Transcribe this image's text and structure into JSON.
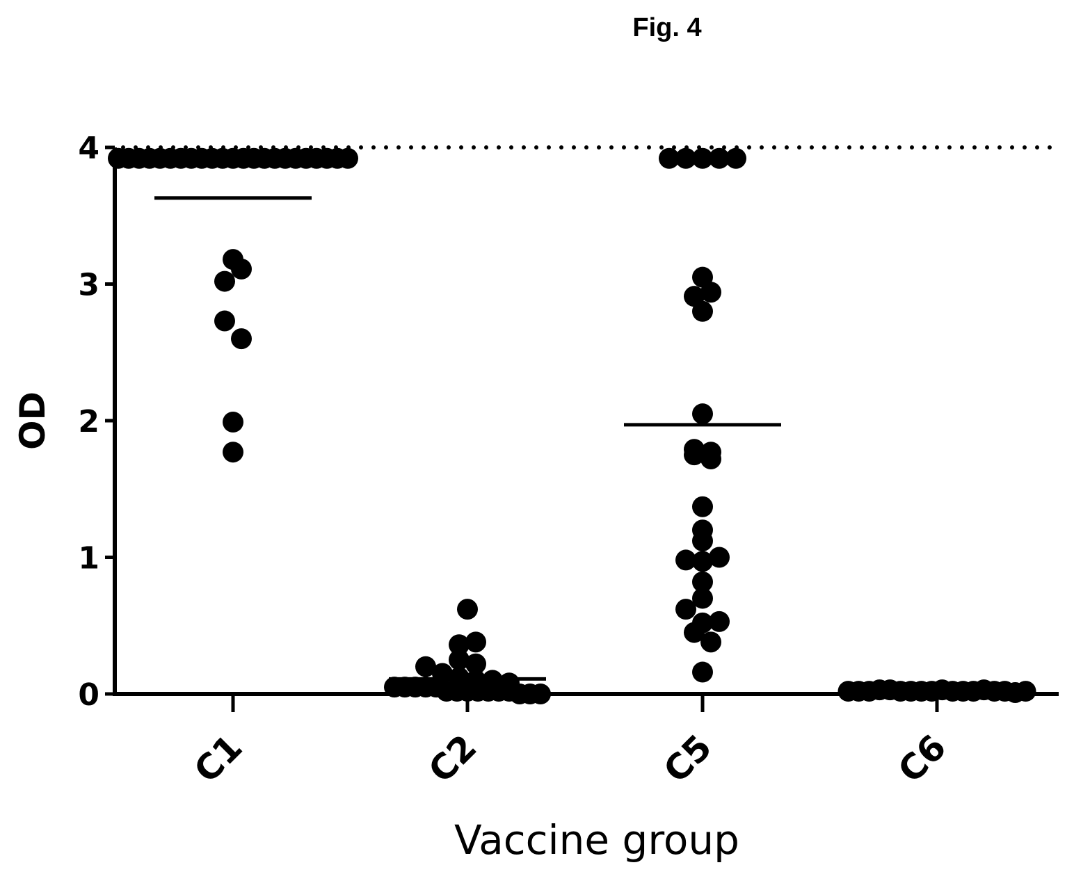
{
  "figure": {
    "title": "Fig. 4"
  },
  "chart_data": {
    "type": "scatter",
    "xlabel": "Vaccine group",
    "ylabel": "OD",
    "ylim": [
      0,
      4
    ],
    "yticks": [
      0,
      1,
      2,
      3,
      4
    ],
    "ytick_labels": [
      "0",
      "1",
      "2",
      "3",
      "4"
    ],
    "categories": [
      "C1",
      "C2",
      "C5",
      "C6"
    ],
    "reference_line": {
      "y": 4.0,
      "style": "dotted"
    },
    "grid": false,
    "legend": "none",
    "marker_color": "#000000",
    "groups": [
      {
        "name": "C1",
        "mean": 3.63,
        "values": [
          3.92,
          3.92,
          3.92,
          3.92,
          3.92,
          3.92,
          3.92,
          3.92,
          3.92,
          3.92,
          3.92,
          3.92,
          3.92,
          3.92,
          3.92,
          3.92,
          3.92,
          3.92,
          3.92,
          3.92,
          3.92,
          3.92,
          3.92,
          3.18,
          3.02,
          3.11,
          2.73,
          2.6,
          1.99,
          1.77
        ]
      },
      {
        "name": "C2",
        "mean": 0.11,
        "values": [
          0.62,
          0.36,
          0.38,
          0.25,
          0.2,
          0.22,
          0.15,
          0.12,
          0.1,
          0.1,
          0.08,
          0.05,
          0.05,
          0.05,
          0.05,
          0.05,
          0.02,
          0.02,
          0.02,
          0.02,
          0.02,
          0.02,
          0.02,
          0.0,
          0.0,
          0.0
        ]
      },
      {
        "name": "C5",
        "mean": 1.97,
        "values": [
          3.92,
          3.92,
          3.92,
          3.92,
          3.92,
          3.05,
          2.91,
          2.8,
          2.94,
          2.05,
          1.79,
          1.75,
          1.72,
          1.77,
          1.37,
          1.12,
          1.2,
          0.98,
          0.97,
          1.0,
          0.82,
          0.7,
          0.62,
          0.52,
          0.45,
          0.38,
          0.53,
          0.16
        ]
      },
      {
        "name": "C6",
        "mean": 0.01,
        "values": [
          0.02,
          0.02,
          0.02,
          0.03,
          0.03,
          0.02,
          0.02,
          0.02,
          0.02,
          0.03,
          0.02,
          0.02,
          0.02,
          0.03,
          0.02,
          0.02,
          0.01,
          0.02
        ]
      }
    ]
  }
}
